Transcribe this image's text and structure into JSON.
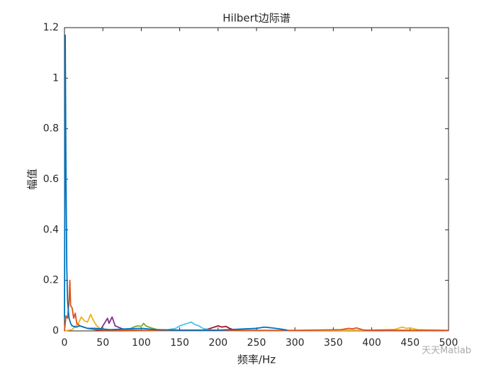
{
  "chart_data": {
    "type": "line",
    "title": "Hilbert边际谱",
    "x_label": "频率/Hz",
    "y_label": "幅值",
    "watermark": "天天Matlab",
    "xlim": [
      0,
      500
    ],
    "ylim": [
      0,
      1.2
    ],
    "xticks": [
      0,
      50,
      100,
      150,
      200,
      250,
      300,
      350,
      400,
      450,
      500
    ],
    "yticks": [
      0,
      0.2,
      0.4,
      0.6,
      0.8,
      1,
      1.2
    ],
    "grid": false,
    "series": [
      {
        "color": "#0072BD",
        "x": [
          0,
          1,
          2,
          3,
          4,
          5,
          6,
          8,
          10,
          15,
          20,
          30,
          40,
          60,
          80,
          100,
          120,
          150,
          200,
          250,
          260,
          270,
          280,
          290
        ],
        "values": [
          0.05,
          1.17,
          0.6,
          0.25,
          0.12,
          0.08,
          0.05,
          0.03,
          0.02,
          0.015,
          0.02,
          0.01,
          0.01,
          0.005,
          0.008,
          0.01,
          0.005,
          0.003,
          0.003,
          0.01,
          0.015,
          0.012,
          0.008,
          0.003
        ]
      },
      {
        "color": "#D95319",
        "x": [
          0,
          2,
          4,
          6,
          7,
          8,
          10,
          12,
          14,
          16,
          20,
          25,
          30,
          40,
          50,
          100,
          200,
          300,
          360,
          370,
          375,
          380,
          390,
          500
        ],
        "values": [
          0,
          0.06,
          0.05,
          0.12,
          0.2,
          0.1,
          0.09,
          0.05,
          0.07,
          0.03,
          0.02,
          0.015,
          0.01,
          0.005,
          0.003,
          0.002,
          0.002,
          0.002,
          0.005,
          0.01,
          0.008,
          0.012,
          0.003,
          0.002
        ]
      },
      {
        "color": "#EDB120",
        "x": [
          0,
          10,
          18,
          22,
          26,
          30,
          34,
          38,
          42,
          46,
          50,
          60,
          100,
          200,
          300,
          400,
          430,
          440,
          445,
          450,
          460,
          500
        ],
        "values": [
          0,
          0.005,
          0.03,
          0.055,
          0.04,
          0.035,
          0.065,
          0.04,
          0.02,
          0.01,
          0.005,
          0.003,
          0.002,
          0.002,
          0.002,
          0.003,
          0.006,
          0.015,
          0.01,
          0.012,
          0.005,
          0.002
        ]
      },
      {
        "color": "#7E2F8E",
        "x": [
          40,
          48,
          52,
          56,
          58,
          62,
          66,
          70,
          74,
          80,
          100,
          200,
          500
        ],
        "values": [
          0.002,
          0.01,
          0.03,
          0.05,
          0.03,
          0.055,
          0.02,
          0.015,
          0.01,
          0.004,
          0.002,
          0.001,
          0.001
        ]
      },
      {
        "color": "#77AC30",
        "x": [
          80,
          90,
          95,
          100,
          103,
          106,
          110,
          115,
          120,
          130,
          150,
          300,
          500
        ],
        "values": [
          0.002,
          0.015,
          0.02,
          0.018,
          0.03,
          0.02,
          0.015,
          0.01,
          0.006,
          0.003,
          0.002,
          0.001,
          0.001
        ]
      },
      {
        "color": "#4DBEEE",
        "x": [
          130,
          145,
          150,
          155,
          160,
          165,
          170,
          175,
          180,
          190,
          200,
          500
        ],
        "values": [
          0.002,
          0.01,
          0.02,
          0.025,
          0.03,
          0.035,
          0.025,
          0.02,
          0.01,
          0.004,
          0.002,
          0.001
        ]
      },
      {
        "color": "#A2142F",
        "x": [
          180,
          190,
          195,
          200,
          205,
          210,
          215,
          220,
          230,
          500
        ],
        "values": [
          0.002,
          0.01,
          0.015,
          0.02,
          0.015,
          0.018,
          0.01,
          0.005,
          0.002,
          0.001
        ]
      }
    ]
  }
}
